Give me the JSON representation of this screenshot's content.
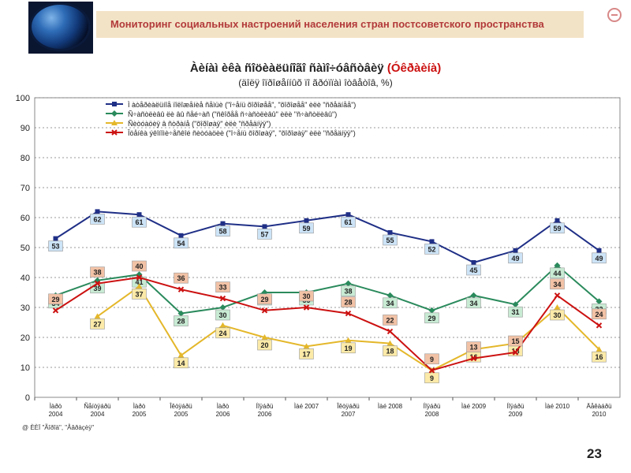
{
  "header": {
    "title": "Мониторинг социальных настроений населения стран постсоветского пространства"
  },
  "chart_title": "Àèíàì èêà ñîöèàëüíîãî ñàìî÷óâñòâèÿ",
  "chart_title_highlight": "(Óêðàèíà)",
  "chart_subtitle": "(äîëÿ îïðîøåííûõ ïî ãðóïïàì îòâåòîâ, %)",
  "source_note": "@ ÈÈÏ \"Ãîðîä\", \"Åâðàçèÿ\"",
  "page_number": "23",
  "colors": {
    "series1": "#1f2f86",
    "series2": "#2a8a5c",
    "series3": "#e4b72a",
    "series4": "#cc1111"
  },
  "chart_data": {
    "type": "line",
    "categories": [
      "Ìàðò\n2004",
      "Ñåíòÿáðü\n2004",
      "Ìàðò\n2005",
      "Îêòÿáðü\n2005",
      "Ìàðò\n2006",
      "Íîÿáðü\n2006",
      "Ìàé 2007",
      "Îêòÿáðü\n2007",
      "Ìàé 2008",
      "Íîÿáðü\n2008",
      "Ìàé 2009",
      "Íîÿáðü\n2009",
      "Ìàé 2010",
      "Äåêàáðü\n2010"
    ],
    "ylim": [
      0,
      100
    ],
    "yticks": [
      0,
      10,
      20,
      30,
      40,
      50,
      60,
      70,
      80,
      90,
      100
    ],
    "grid": true,
    "legend_position": "top",
    "series": [
      {
        "name": "Ì àòåðèàëüíîå ïîëîæåíèå ñåìüè (\"î÷åíü õîðîøåå\", \"õîðîøåå\" èëè \"ñðåäíåå\")",
        "values": [
          53,
          62,
          61,
          54,
          58,
          57,
          59,
          61,
          55,
          52,
          45,
          49,
          59,
          49
        ],
        "marker": "square"
      },
      {
        "name": "Ñ÷àñòëèâû ëè âû ñåé÷àñ (\"ñêîðåå ñ÷àñòëèâû\" èëè \"ñ÷àñòëèâû\")",
        "values": [
          34,
          39,
          41,
          28,
          30,
          35,
          35,
          38,
          34,
          29,
          34,
          31,
          44,
          32
        ],
        "marker": "diamond"
      },
      {
        "name": "Ñèòóàöèÿ â ñòðàíå (\"õîðîøàÿ\" èëè \"ñðåäíÿÿ\")",
        "values": [
          null,
          27,
          37,
          14,
          24,
          20,
          17,
          19,
          18,
          9,
          16,
          18,
          30,
          16
        ],
        "marker": "triangle"
      },
      {
        "name": "Îöåíêà ýêîíîìè÷åñêîé ñèòóàöèè (\"î÷åíü õîðîøàÿ\", \"õîðîøàÿ\" èëè \"ñðåäíÿÿ\")",
        "values": [
          29,
          38,
          40,
          36,
          33,
          29,
          30,
          28,
          22,
          9,
          13,
          15,
          34,
          24
        ],
        "marker": "x"
      }
    ]
  }
}
